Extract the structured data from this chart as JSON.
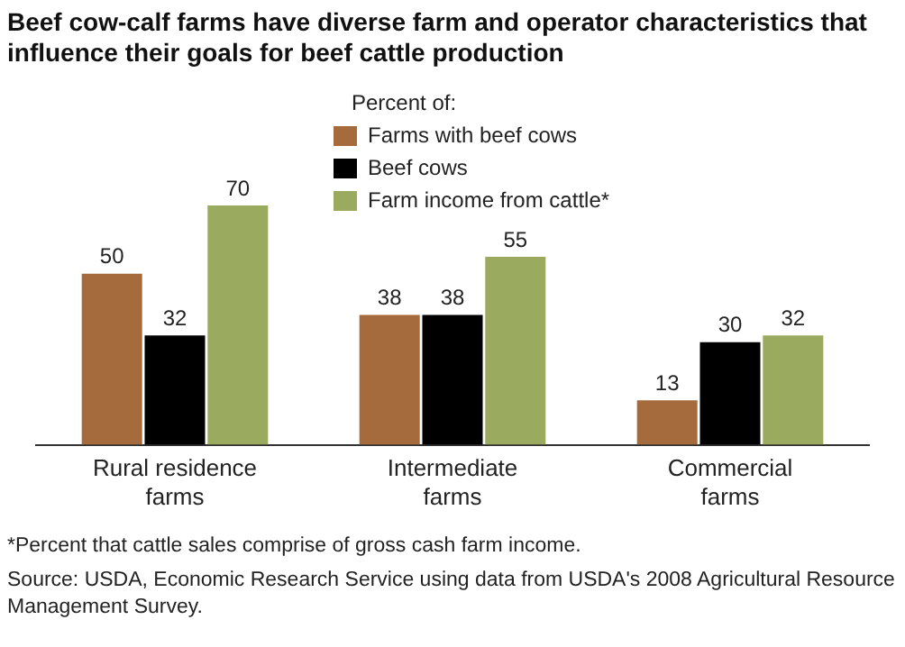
{
  "chart_data": {
    "type": "bar",
    "title": "Beef cow-calf farms have diverse farm and operator characteristics that influence their goals for beef cattle production",
    "categories": [
      "Rural residence farms",
      "Intermediate farms",
      "Commercial farms"
    ],
    "legend_title": "Percent of:",
    "series": [
      {
        "name": "Farms with beef cows",
        "color": "#a66b3c",
        "values": [
          50,
          38,
          13
        ]
      },
      {
        "name": "Beef cows",
        "color": "#000000",
        "values": [
          32,
          38,
          30
        ]
      },
      {
        "name": "Farm income from cattle*",
        "color": "#9aab5f",
        "values": [
          70,
          55,
          32
        ]
      }
    ],
    "data_labels": true,
    "legend": "top",
    "tick_labels": "x",
    "grid": false,
    "annotations": [
      "*Percent that cattle sales comprise of gross cash farm income.",
      "Source: USDA, Economic Research Service using data from USDA's 2008 Agricultural Resource Management Survey."
    ]
  }
}
